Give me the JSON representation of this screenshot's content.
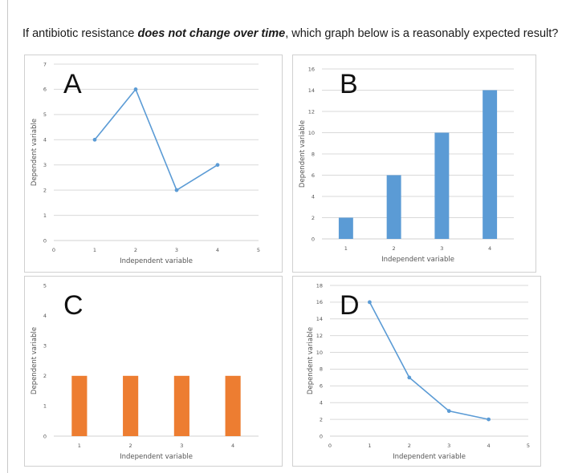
{
  "question": {
    "prefix": "If antibiotic resistance ",
    "emphasis": "does not change over time",
    "suffix": ", which graph below is a reasonably expected result?"
  },
  "colors": {
    "line": "#5b9bd5",
    "bar_blue": "#5b9bd5",
    "bar_orange": "#ed7d31",
    "grid": "#d9d9d9",
    "border": "#d0d0d0"
  },
  "chart_data": [
    {
      "id": "A",
      "type": "line",
      "label": "A",
      "xlabel": "Independent variable",
      "ylabel": "Dependent variable",
      "x": [
        1,
        2,
        3,
        4
      ],
      "values": [
        4,
        6,
        2,
        3
      ],
      "xlim": [
        0,
        5
      ],
      "ylim": [
        0,
        7
      ],
      "xticks": [
        "0",
        "1",
        "2",
        "3",
        "4",
        "5"
      ],
      "yticks": [
        "0",
        "1",
        "2",
        "3",
        "4",
        "5",
        "6",
        "7"
      ],
      "grid": true
    },
    {
      "id": "B",
      "type": "bar",
      "label": "B",
      "xlabel": "Independent variable",
      "ylabel": "Dependent variable",
      "categories": [
        "1",
        "2",
        "3",
        "4"
      ],
      "values": [
        2,
        6,
        10,
        14
      ],
      "ylim": [
        0,
        16
      ],
      "yticks": [
        "0",
        "2",
        "4",
        "6",
        "8",
        "10",
        "12",
        "14",
        "16"
      ],
      "grid": true
    },
    {
      "id": "C",
      "type": "bar",
      "label": "C",
      "xlabel": "Independent variable",
      "ylabel": "Dependent variable",
      "categories": [
        "1",
        "2",
        "3",
        "4"
      ],
      "values": [
        2,
        2,
        2,
        2
      ],
      "ylim": [
        0,
        5
      ],
      "yticks": [
        "0",
        "1",
        "2",
        "3",
        "4",
        "5"
      ],
      "grid": false
    },
    {
      "id": "D",
      "type": "line",
      "label": "D",
      "xlabel": "Independent variable",
      "ylabel": "Dependent variable",
      "x": [
        1,
        2,
        3,
        4
      ],
      "values": [
        16,
        7,
        3,
        2
      ],
      "xlim": [
        0,
        5
      ],
      "ylim": [
        0,
        18
      ],
      "xticks": [
        "0",
        "1",
        "2",
        "3",
        "4",
        "5"
      ],
      "yticks": [
        "0",
        "2",
        "4",
        "6",
        "8",
        "10",
        "12",
        "14",
        "16",
        "18"
      ],
      "grid": true
    }
  ]
}
